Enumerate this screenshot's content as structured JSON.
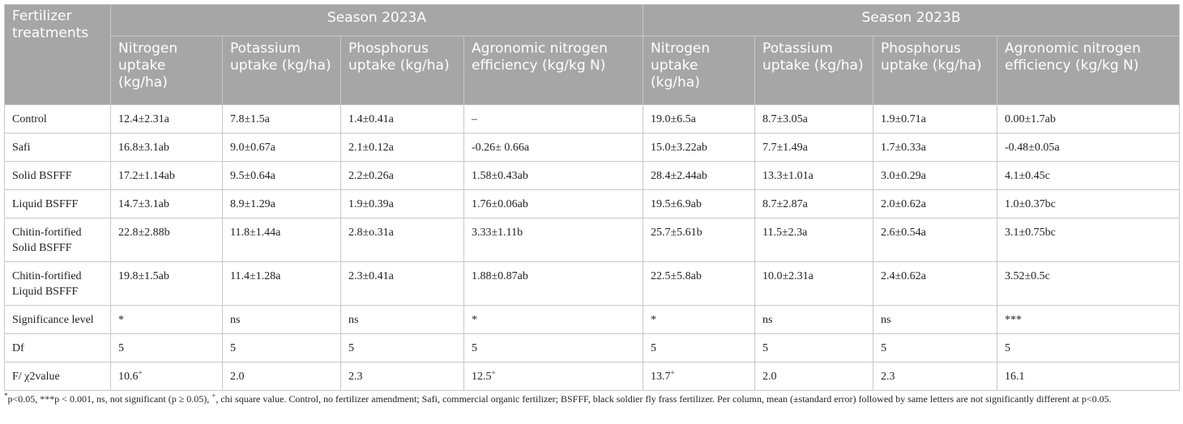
{
  "header": {
    "col1": "Fertilizer treatments",
    "groups": [
      "Season 2023A",
      "Season 2023B"
    ],
    "subcols": [
      "Nitrogen uptake (kg/ha)",
      "Potassium uptake (kg/ha)",
      "Phosphorus uptake (kg/ha)",
      "Agronomic nitrogen efficiency (kg/kg N)",
      "Nitrogen uptake (kg/ha)",
      "Potassium uptake (kg/ha)",
      "Phosphorus uptake (kg/ha)",
      "Agronomic nitrogen efficiency (kg/kg N)"
    ]
  },
  "rows": [
    {
      "label": "Control",
      "cells": [
        "12.4±2.31a",
        "7.8±1.5a",
        "1.4±0.41a",
        "–",
        "19.0±6.5a",
        "8.7±3.05a",
        "1.9±0.71a",
        "0.00±1.7ab"
      ]
    },
    {
      "label": "Safi",
      "cells": [
        "16.8±3.1ab",
        "9.0±0.67a",
        "2.1±0.12a",
        "-0.26± 0.66a",
        "15.0±3.22ab",
        "7.7±1.49a",
        "1.7±0.33a",
        "-0.48±0.05a"
      ]
    },
    {
      "label": "Solid BSFFF",
      "cells": [
        "17.2±1.14ab",
        "9.5±0.64a",
        "2.2±0.26a",
        "1.58±0.43ab",
        "28.4±2.44ab",
        "13.3±1.01a",
        "3.0±0.29a",
        "4.1±0.45c"
      ]
    },
    {
      "label": "Liquid BSFFF",
      "cells": [
        "14.7±3.1ab",
        "8.9±1.29a",
        "1.9±0.39a",
        "1.76±0.06ab",
        "19.5±6.9ab",
        "8.7±2.87a",
        "2.0±0.62a",
        "1.0±0.37bc"
      ]
    },
    {
      "label": "Chitin-fortified Solid BSFFF",
      "cells": [
        "22.8±2.88b",
        "11.8±1.44a",
        "2.8±o.31a",
        "3.33±1.11b",
        "25.7±5.61b",
        "11.5±2.3a",
        "2.6±0.54a",
        "3.1±0.75bc"
      ]
    },
    {
      "label": "Chitin-fortified Liquid BSFFF",
      "cells": [
        "19.8±1.5ab",
        "11.4±1.28a",
        "2.3±0.41a",
        "1.88±0.87ab",
        "22.5±5.8ab",
        "10.0±2.31a",
        "2.4±0.62a",
        "3.52±0.5c"
      ]
    },
    {
      "label": "Significance level",
      "cells": [
        "*",
        "ns",
        "ns",
        "*",
        "*",
        "ns",
        "ns",
        "***"
      ]
    },
    {
      "label": "Df",
      "cells": [
        "5",
        "5",
        "5",
        "5",
        "5",
        "5",
        "5",
        "5"
      ]
    }
  ],
  "f_row": {
    "label": "F/ χ2value",
    "cells": [
      {
        "v": "10.6",
        "sup": "+"
      },
      {
        "v": "2.0",
        "sup": ""
      },
      {
        "v": "2.3",
        "sup": ""
      },
      {
        "v": "12.5",
        "sup": "+"
      },
      {
        "v": "13.7",
        "sup": "+"
      },
      {
        "v": "2.0",
        "sup": ""
      },
      {
        "v": "2.3",
        "sup": ""
      },
      {
        "v": "16.1",
        "sup": ""
      }
    ]
  },
  "footnote": {
    "star": "*",
    "part1": "p<0.05, ***p < 0.001, ns, not significant (p ≥ 0.05), ",
    "plus": "+",
    "part2": ", chi square value. Control, no fertilizer amendment; Safi, commercial organic fertilizer; BSFFF, black soldier fly frass fertilizer. Per column, mean (±standard error) followed by same letters are not significantly different at p<0.05."
  },
  "colors": {
    "header_bg": "#a6a6a6",
    "header_text": "#ffffff",
    "border": "#c8c8c8"
  }
}
